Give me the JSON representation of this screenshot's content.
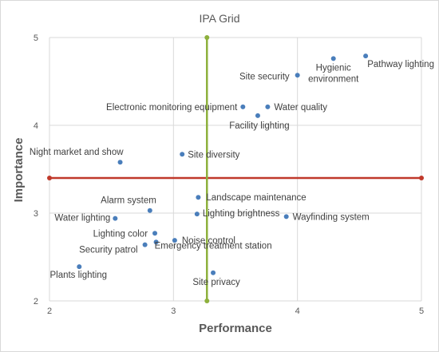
{
  "chart_data": {
    "type": "scatter",
    "title": "IPA Grid",
    "xlabel": "Performance",
    "ylabel": "Importance",
    "xlim": [
      2,
      5
    ],
    "ylim": [
      2,
      5
    ],
    "xticks": [
      2,
      3,
      4,
      5
    ],
    "yticks": [
      2,
      3,
      4,
      5
    ],
    "grid": true,
    "reference_lines": {
      "vertical_x": 3.27,
      "horizontal_y": 3.4,
      "vertical_color": "#8db03c",
      "horizontal_color": "#c0392b"
    },
    "marker_color": "#4a7ebb",
    "points": [
      {
        "label": "Pathway lighting",
        "x": 4.55,
        "y": 4.79
      },
      {
        "label": "Hygienic environment",
        "x": 4.29,
        "y": 4.76
      },
      {
        "label": "Site security",
        "x": 4.0,
        "y": 4.57
      },
      {
        "label": "Electronic monitoring equipment",
        "x": 3.56,
        "y": 4.21
      },
      {
        "label": "Water quality",
        "x": 3.76,
        "y": 4.21
      },
      {
        "label": "Facility lighting",
        "x": 3.68,
        "y": 4.11
      },
      {
        "label": "Site diversity",
        "x": 3.07,
        "y": 3.67
      },
      {
        "label": "Night market and show",
        "x": 2.57,
        "y": 3.58
      },
      {
        "label": "Landscape maintenance",
        "x": 3.2,
        "y": 3.18
      },
      {
        "label": "Alarm system",
        "x": 2.81,
        "y": 3.03
      },
      {
        "label": "Lighting brightness",
        "x": 3.19,
        "y": 2.99
      },
      {
        "label": "Wayfinding system",
        "x": 3.91,
        "y": 2.96
      },
      {
        "label": "Water lighting",
        "x": 2.53,
        "y": 2.94
      },
      {
        "label": "Lighting color",
        "x": 2.85,
        "y": 2.77
      },
      {
        "label": "Noise control",
        "x": 3.01,
        "y": 2.69
      },
      {
        "label": "Emergency treatment station",
        "x": 2.86,
        "y": 2.67
      },
      {
        "label": "Security patrol",
        "x": 2.77,
        "y": 2.64
      },
      {
        "label": "Plants lighting",
        "x": 2.24,
        "y": 2.39
      },
      {
        "label": "Site privacy",
        "x": 3.32,
        "y": 2.32
      }
    ]
  }
}
